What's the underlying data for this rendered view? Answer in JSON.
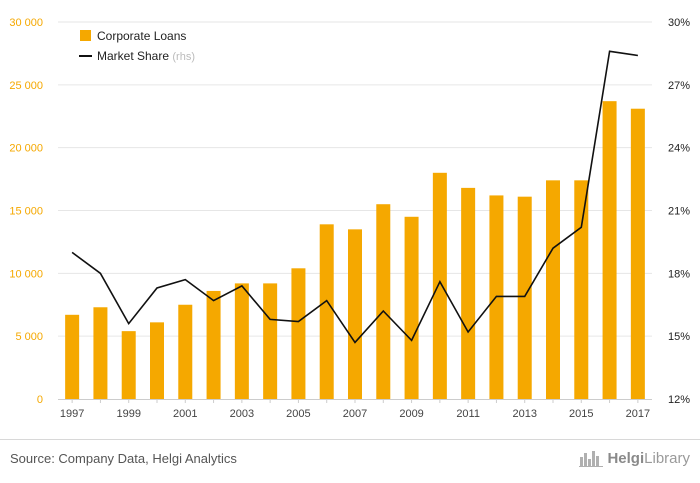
{
  "chart_data": {
    "type": "bar",
    "categories": [
      "1997",
      "1998",
      "1999",
      "2000",
      "2001",
      "2002",
      "2003",
      "2004",
      "2005",
      "2006",
      "2007",
      "2008",
      "2009",
      "2010",
      "2011",
      "2012",
      "2013",
      "2014",
      "2015",
      "2016",
      "2017"
    ],
    "x_tick_labels": [
      "1997",
      "1999",
      "2001",
      "2003",
      "2005",
      "2007",
      "2009",
      "2011",
      "2013",
      "2015",
      "2017"
    ],
    "series": [
      {
        "name": "Corporate Loans",
        "type": "bar",
        "axis": "left",
        "color": "#f5a800",
        "values": [
          6700,
          7300,
          5400,
          6100,
          7500,
          8600,
          9200,
          9200,
          10400,
          13900,
          13500,
          15500,
          14500,
          18000,
          16800,
          16200,
          16100,
          17400,
          17400,
          23700,
          23100
        ]
      },
      {
        "name": "Market Share",
        "name_suffix": "(rhs)",
        "type": "line",
        "axis": "right",
        "color": "#111111",
        "values": [
          19.0,
          18.0,
          15.6,
          17.3,
          17.7,
          16.7,
          17.4,
          15.8,
          15.7,
          16.7,
          14.7,
          16.2,
          14.8,
          17.6,
          15.2,
          16.9,
          16.9,
          19.2,
          20.2,
          28.6,
          28.4
        ]
      }
    ],
    "y_left": {
      "min": 0,
      "max": 30000,
      "ticks": [
        "0",
        "5 000",
        "10 000",
        "15 000",
        "20 000",
        "25 000",
        "30 000"
      ]
    },
    "y_right": {
      "min": 12,
      "max": 30,
      "ticks": [
        "12%",
        "15%",
        "18%",
        "21%",
        "24%",
        "27%",
        "30%"
      ]
    },
    "legend": {
      "position": "top-left"
    },
    "grid": true
  },
  "footer": {
    "source": "Source: Company Data, Helgi Analytics",
    "brand_bold": "Helgi",
    "brand_rest": "Library"
  }
}
